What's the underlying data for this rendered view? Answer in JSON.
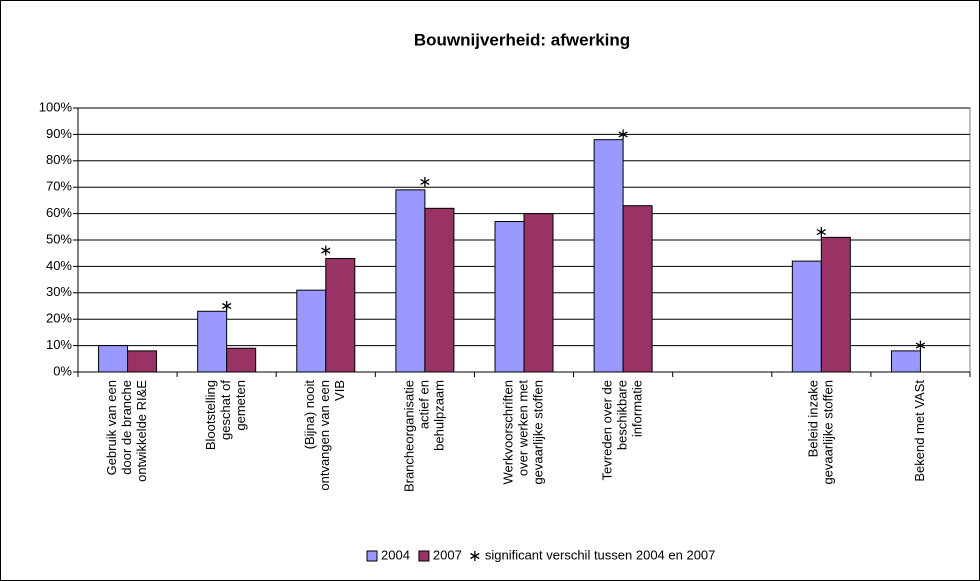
{
  "chart_data": {
    "type": "bar",
    "title": "Bouwnijverheid: afwerking",
    "categories": [
      [
        "Gebruik van een",
        "door de branche",
        "ontwikkelde RI&E"
      ],
      [
        "Blootstelling",
        "geschat of",
        "gemeten"
      ],
      [
        "(Bijna) nooit",
        "ontvangen van een",
        "VIB"
      ],
      [
        "Brancheorganisatie",
        "actief en",
        "behulpzaam"
      ],
      [
        "Werkvoorschriften",
        "over werken met",
        "gevaarlijke stoffen"
      ],
      [
        "Tevreden over de",
        "beschikbare",
        "informatie"
      ],
      null,
      [
        "Beleid inzake",
        "gevaarlijke stoffen"
      ],
      [
        "Bekend met VASt"
      ]
    ],
    "series": [
      {
        "name": "2004",
        "color": "#9999ff",
        "values": [
          10,
          23,
          31,
          69,
          57,
          88,
          null,
          42,
          8
        ]
      },
      {
        "name": "2007",
        "color": "#993366",
        "values": [
          8,
          9,
          43,
          62,
          60,
          63,
          null,
          51,
          null
        ]
      },
      {
        "name": "significant verschil tussen 2004 en 2007",
        "color": "#000000",
        "type": "marker",
        "values": [
          null,
          25,
          46,
          72,
          null,
          90,
          null,
          53,
          10
        ]
      }
    ],
    "ylim": [
      0,
      100
    ],
    "yticks": [
      {
        "value": 0,
        "label": "0%"
      },
      {
        "value": 10,
        "label": "10%"
      },
      {
        "value": 20,
        "label": "20%"
      },
      {
        "value": 30,
        "label": "30%"
      },
      {
        "value": 40,
        "label": "40%"
      },
      {
        "value": 50,
        "label": "50%"
      },
      {
        "value": 60,
        "label": "60%"
      },
      {
        "value": 70,
        "label": "70%"
      },
      {
        "value": 80,
        "label": "80%"
      },
      {
        "value": 90,
        "label": "90%"
      },
      {
        "value": 100,
        "label": "100%"
      }
    ],
    "grid": true,
    "legend": "bottom"
  }
}
